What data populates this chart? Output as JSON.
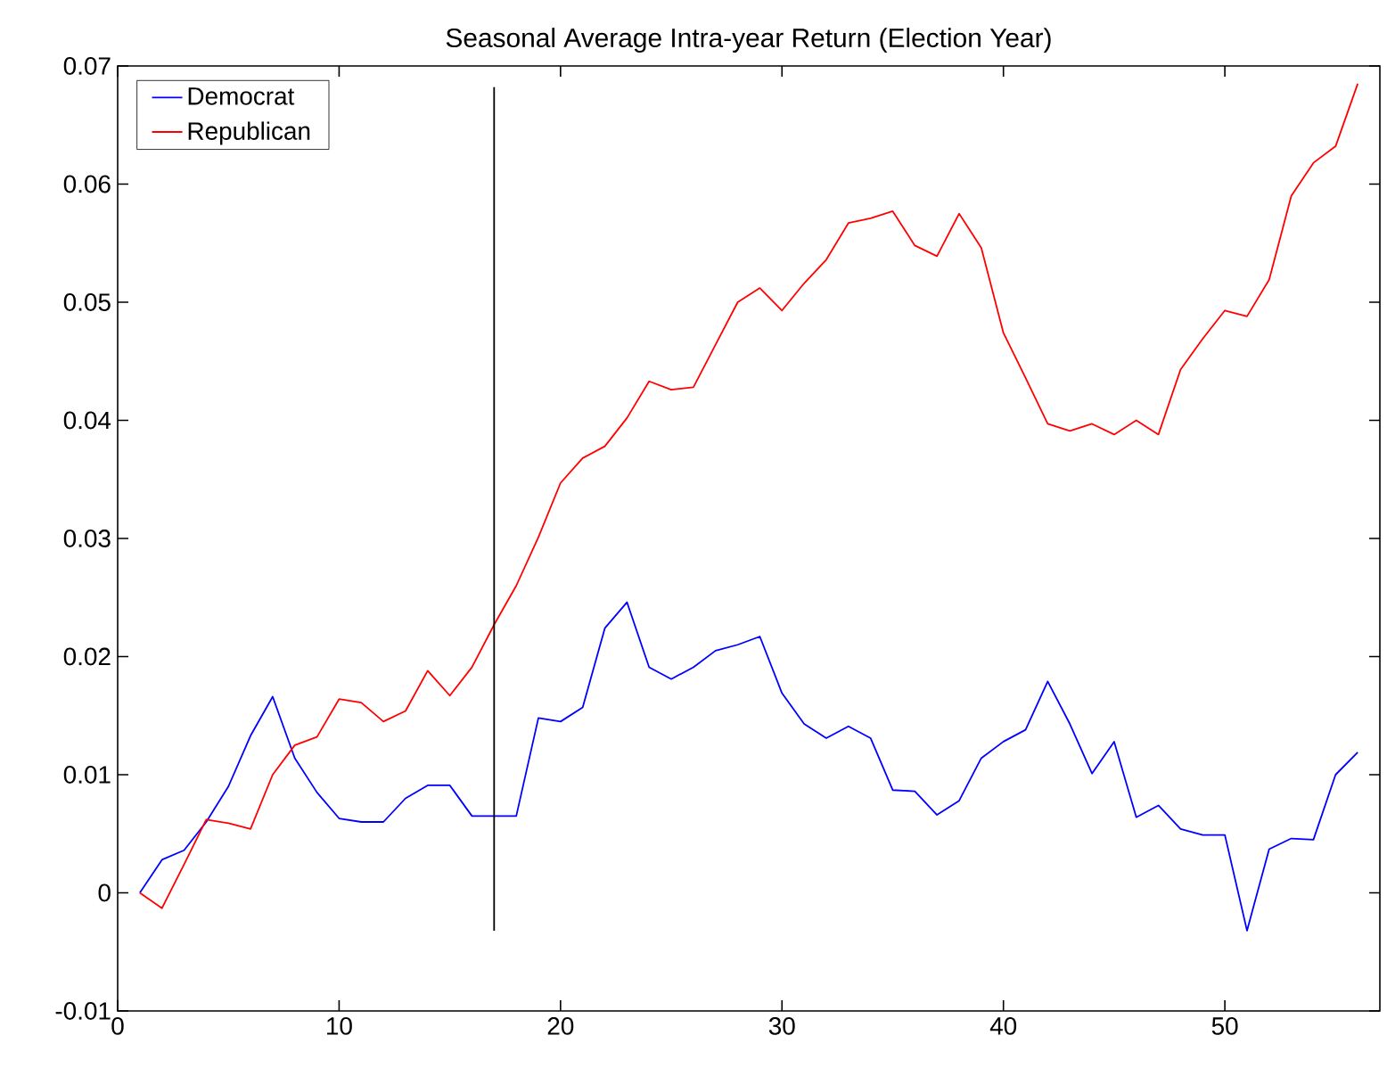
{
  "chart_data": {
    "type": "line",
    "title": "Seasonal Average Intra-year Return (Election Year)",
    "x": [
      1,
      2,
      3,
      4,
      5,
      6,
      7,
      8,
      9,
      10,
      11,
      12,
      13,
      14,
      15,
      16,
      17,
      18,
      19,
      20,
      21,
      22,
      23,
      24,
      25,
      26,
      27,
      28,
      29,
      30,
      31,
      32,
      33,
      34,
      35,
      36,
      37,
      38,
      39,
      40,
      41,
      42,
      43,
      44,
      45,
      46,
      47,
      48,
      49,
      50,
      51,
      52,
      53,
      54,
      55,
      56
    ],
    "series": [
      {
        "name": "Democrat",
        "color": "#0000ff",
        "values": [
          0,
          0.0028,
          0.0036,
          0.006,
          0.009,
          0.0133,
          0.0166,
          0.0114,
          0.0085,
          0.0063,
          0.006,
          0.006,
          0.008,
          0.0091,
          0.0091,
          0.0065,
          0.0065,
          0.0065,
          0.0148,
          0.0145,
          0.0157,
          0.0224,
          0.0246,
          0.0191,
          0.0181,
          0.0191,
          0.0205,
          0.021,
          0.0217,
          0.0169,
          0.0143,
          0.0131,
          0.0141,
          0.0131,
          0.0087,
          0.0086,
          0.0066,
          0.0078,
          0.0114,
          0.0128,
          0.0138,
          0.0179,
          0.0143,
          0.0101,
          0.0128,
          0.0064,
          0.0074,
          0.0054,
          0.0049,
          0.0049,
          -0.0032,
          0.0037,
          0.0046,
          0.0045,
          0.01,
          0.0119
        ]
      },
      {
        "name": "Republican",
        "color": "#ff0000",
        "values": [
          0,
          -0.0013,
          0.0024,
          0.0062,
          0.0059,
          0.0054,
          0.01,
          0.0125,
          0.0132,
          0.0164,
          0.0161,
          0.0145,
          0.0154,
          0.0188,
          0.0167,
          0.0191,
          0.0227,
          0.026,
          0.0301,
          0.0347,
          0.0368,
          0.0378,
          0.0402,
          0.0433,
          0.0426,
          0.0428,
          0.0464,
          0.05,
          0.0512,
          0.0493,
          0.0516,
          0.0536,
          0.0567,
          0.0571,
          0.0577,
          0.0548,
          0.0539,
          0.0575,
          0.0546,
          0.0474,
          0.0436,
          0.0397,
          0.0391,
          0.0397,
          0.0388,
          0.04,
          0.0388,
          0.0443,
          0.0469,
          0.0493,
          0.0488,
          0.0519,
          0.059,
          0.0618,
          0.0632,
          0.0685
        ]
      },
      {
        "color": "#000000",
        "x": [
          17,
          17
        ],
        "values": [
          -0.0032,
          0.0682
        ]
      }
    ],
    "xlim": [
      0,
      57
    ],
    "ylim": [
      -0.01,
      0.07
    ],
    "xticks": [
      0,
      10,
      20,
      30,
      40,
      50
    ],
    "yticks": [
      -0.01,
      0,
      0.01,
      0.02,
      0.03,
      0.04,
      0.05,
      0.06,
      0.07
    ],
    "legend": "top left",
    "grid": false,
    "line_style": "solid"
  }
}
